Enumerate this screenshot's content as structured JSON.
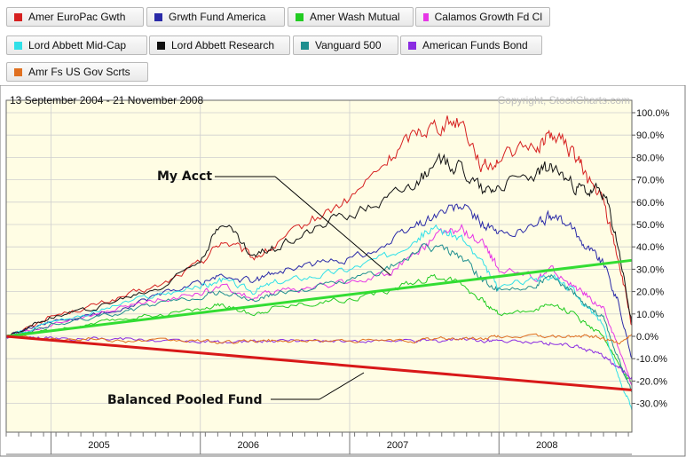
{
  "legend": [
    {
      "label": "Amer EuroPac Gwth",
      "color": "#d62020"
    },
    {
      "label": "Grwth Fund America",
      "color": "#2a2aa8"
    },
    {
      "label": "Amer Wash Mutual",
      "color": "#22cc22"
    },
    {
      "label": "Calamos Growth Fd Cl",
      "color": "#e636e6"
    },
    {
      "label": "Lord Abbett Mid-Cap",
      "color": "#30e0e8"
    },
    {
      "label": "Lord Abbett Research",
      "color": "#111111"
    },
    {
      "label": "Vanguard 500",
      "color": "#1f8f8f"
    },
    {
      "label": "American Funds Bond",
      "color": "#8a2be2"
    },
    {
      "label": "Amr Fs US Gov Scrts",
      "color": "#e07020"
    }
  ],
  "date_range": "13 September 2004 - 21 November 2008",
  "copyright": "Copyright, StockCharts.com",
  "annotations": {
    "my_acct": "My Acct",
    "balanced": "Balanced Pooled Fund"
  },
  "chart_data": {
    "type": "line",
    "ylim": [
      -40,
      105
    ],
    "xlim": [
      2004.7,
      2008.89
    ],
    "y_ticks": [
      "100.0%",
      "90.0%",
      "80.0%",
      "70.0%",
      "60.0%",
      "50.0%",
      "40.0%",
      "30.0%",
      "20.0%",
      "10.0%",
      "0.0%",
      "-10.0%",
      "-20.0%",
      "-30.0%"
    ],
    "y_tick_values": [
      100,
      90,
      80,
      70,
      60,
      50,
      40,
      30,
      20,
      10,
      0,
      -10,
      -20,
      -30
    ],
    "x_ticks": [
      "2005",
      "2006",
      "2007",
      "2008"
    ],
    "x_tick_values": [
      2005.0,
      2006.0,
      2007.0,
      2008.0
    ],
    "x": [
      2004.7,
      2004.85,
      2005.0,
      2005.25,
      2005.5,
      2005.75,
      2006.0,
      2006.15,
      2006.35,
      2006.5,
      2006.75,
      2007.0,
      2007.25,
      2007.45,
      2007.6,
      2007.75,
      2007.9,
      2008.0,
      2008.25,
      2008.35,
      2008.5,
      2008.6,
      2008.7,
      2008.8,
      2008.89
    ],
    "series": [
      {
        "name": "Amer EuroPac Gwth",
        "color": "#d62020",
        "values": [
          0,
          4,
          9,
          13,
          18,
          23,
          33,
          43,
          35,
          40,
          52,
          61,
          78,
          92,
          95,
          97,
          75,
          80,
          85,
          91,
          82,
          70,
          60,
          35,
          5
        ]
      },
      {
        "name": "Grwth Fund America",
        "color": "#2a2aa8",
        "values": [
          0,
          3,
          6,
          9,
          13,
          19,
          24,
          27,
          24,
          29,
          32,
          35,
          41,
          50,
          55,
          58,
          50,
          45,
          50,
          54,
          47,
          40,
          33,
          15,
          -10
        ]
      },
      {
        "name": "Amer Wash Mutual",
        "color": "#22cc22",
        "values": [
          0,
          1,
          3,
          5,
          8,
          10,
          12,
          14,
          10,
          13,
          15,
          17,
          20,
          25,
          27,
          24,
          15,
          10,
          12,
          15,
          10,
          5,
          0,
          -12,
          -22
        ]
      },
      {
        "name": "Calamos Growth Fd Cl",
        "color": "#e636e6",
        "values": [
          0,
          2,
          5,
          9,
          13,
          17,
          19,
          22,
          17,
          20,
          22,
          24,
          28,
          38,
          45,
          48,
          40,
          30,
          26,
          30,
          22,
          18,
          12,
          -5,
          -22
        ]
      },
      {
        "name": "Lord Abbett Mid-Cap",
        "color": "#30e0e8",
        "values": [
          0,
          3,
          7,
          10,
          15,
          19,
          22,
          25,
          20,
          24,
          27,
          30,
          36,
          45,
          48,
          44,
          30,
          22,
          26,
          28,
          20,
          12,
          5,
          -18,
          -33
        ]
      },
      {
        "name": "Lord Abbett Research",
        "color": "#111111",
        "values": [
          0,
          4,
          9,
          12,
          17,
          22,
          35,
          52,
          35,
          40,
          48,
          55,
          62,
          70,
          77,
          76,
          65,
          68,
          72,
          76,
          67,
          64,
          65,
          40,
          5
        ]
      },
      {
        "name": "Vanguard 500",
        "color": "#1f8f8f",
        "values": [
          0,
          2,
          5,
          8,
          11,
          15,
          18,
          20,
          16,
          19,
          22,
          25,
          30,
          38,
          40,
          36,
          25,
          20,
          23,
          26,
          19,
          14,
          8,
          -10,
          -25
        ]
      },
      {
        "name": "American Funds Bond",
        "color": "#8a2be2",
        "values": [
          0,
          0,
          -1,
          -1,
          -1,
          -2,
          -2,
          -3,
          -2,
          -2,
          -2,
          -2,
          -2,
          -2,
          -2,
          -1,
          -2,
          -2,
          -3,
          -3,
          -4,
          -6,
          -9,
          -14,
          -18
        ]
      },
      {
        "name": "Amr Fs US Gov Scrts",
        "color": "#e07020",
        "values": [
          0,
          0,
          -1,
          -1,
          -2,
          -2,
          -2,
          -3,
          -2,
          -2,
          -2,
          -2,
          -2,
          -2,
          -1,
          -1,
          -1,
          0,
          0,
          0,
          0,
          0,
          -1,
          -3,
          1
        ]
      }
    ],
    "trend_lines": [
      {
        "name": "My Acct",
        "color": "#33dd33",
        "x": [
          2004.7,
          2008.89
        ],
        "values": [
          0,
          34
        ]
      },
      {
        "name": "Balanced Pooled Fund",
        "color": "#d81818",
        "x": [
          2004.7,
          2008.89
        ],
        "values": [
          0,
          -24
        ]
      }
    ]
  }
}
